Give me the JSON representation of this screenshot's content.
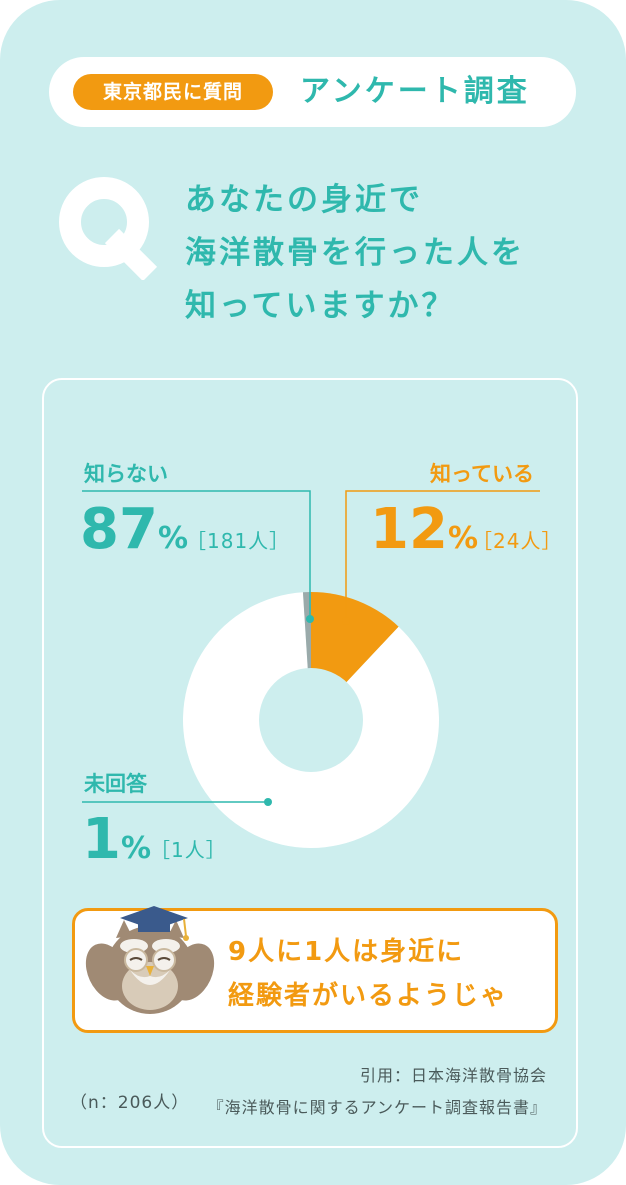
{
  "header": {
    "tag": "東京都民に質問",
    "title": "アンケート調査"
  },
  "question": {
    "letter": "Q",
    "lines": [
      "あなたの身近で",
      "海洋散骨を行った人を",
      "知っていますか？"
    ]
  },
  "labels": {
    "unknown": {
      "name": "知らない",
      "value": "87",
      "pct": "%",
      "count": "［181人］"
    },
    "known": {
      "name": "知っている",
      "value": "12",
      "pct": "%",
      "count": "［24人］"
    },
    "noanswer": {
      "name": "未回答",
      "value": "1",
      "pct": "%",
      "count": "［1人］"
    }
  },
  "callout": {
    "lines": [
      "9人に1人は身近に",
      "経験者がいるようじゃ"
    ]
  },
  "sample_size": "（n：206人）",
  "source": {
    "line1": "引用：日本海洋散骨協会",
    "line2": "『海洋散骨に関するアンケート調査報告書』"
  },
  "colors": {
    "teal": "#2fb8ad",
    "orange": "#f29a11",
    "background": "#cdeeee",
    "gray": "#9aaaaa"
  },
  "chart_data": {
    "type": "pie",
    "categories": [
      "知っている",
      "知らない",
      "未回答"
    ],
    "values": [
      12,
      87,
      1
    ],
    "counts": [
      24,
      181,
      1
    ],
    "total": 206
  }
}
